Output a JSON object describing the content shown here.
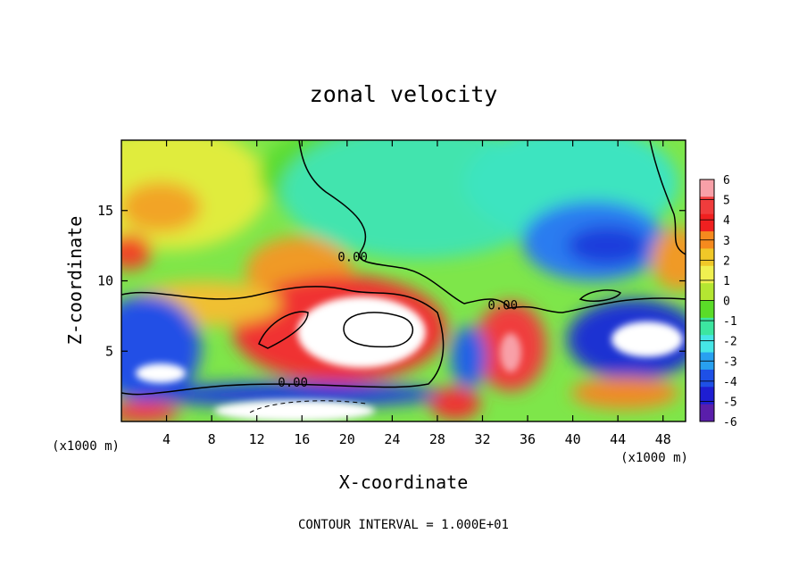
{
  "chart_data": {
    "type": "heatmap",
    "title": "zonal velocity",
    "xlabel": "X-coordinate",
    "ylabel": "Z-coordinate",
    "x_unit": "(x1000 m)",
    "y_unit": "(x1000 m)",
    "footer": "CONTOUR INTERVAL = 1.000E+01",
    "xlim": [
      0,
      50
    ],
    "ylim": [
      0,
      20
    ],
    "x_ticks": [
      4,
      8,
      12,
      16,
      20,
      24,
      28,
      32,
      36,
      40,
      44,
      48
    ],
    "y_ticks": [
      5,
      10,
      15
    ],
    "colorbar": {
      "range": [
        -6,
        6
      ],
      "ticks": [
        6,
        5,
        4,
        3,
        2,
        1,
        0,
        -1,
        -2,
        -3,
        -4,
        -5,
        -6
      ],
      "colors": [
        "#f8a0a8",
        "#f03c3c",
        "#f02020",
        "#f58a1e",
        "#f0c828",
        "#f0f050",
        "#b4e632",
        "#5adc28",
        "#3ce6a0",
        "#46e6e6",
        "#28a0f0",
        "#1e50e6",
        "#1e1ed2",
        "#5a1eaa"
      ]
    },
    "contour_labels": [
      {
        "text": "0.00",
        "x": 20.5,
        "z": 11.7
      },
      {
        "text": "0.00",
        "x": 33.8,
        "z": 8.3
      },
      {
        "text": "0.00",
        "x": 15.2,
        "z": 2.8
      }
    ],
    "grid": false,
    "legend": "colorbar-right"
  }
}
